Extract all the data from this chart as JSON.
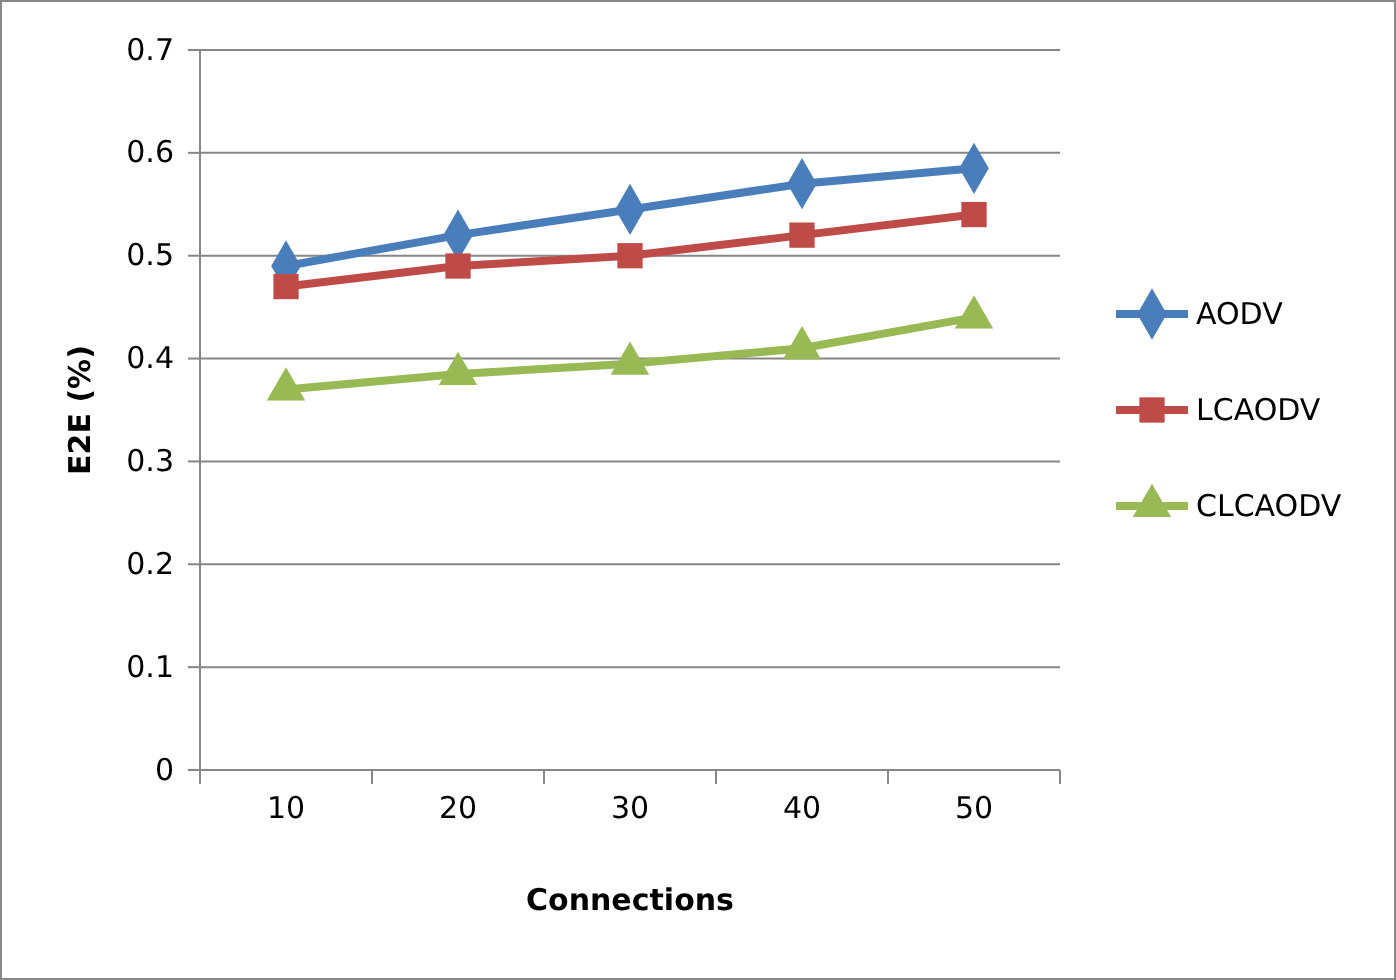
{
  "chart_data": {
    "type": "line",
    "xlabel": "Connections",
    "ylabel": "E2E (%)",
    "categories": [
      "10",
      "20",
      "30",
      "40",
      "50"
    ],
    "series": [
      {
        "name": "AODV",
        "color": "#4a7ebb",
        "values": [
          0.49,
          0.52,
          0.545,
          0.57,
          0.585
        ],
        "marker": "diamond"
      },
      {
        "name": "LCAODV",
        "color": "#be4b48",
        "values": [
          0.47,
          0.49,
          0.5,
          0.52,
          0.54
        ],
        "marker": "square"
      },
      {
        "name": "CLCAODV",
        "color": "#98b954",
        "values": [
          0.37,
          0.385,
          0.395,
          0.41,
          0.44
        ],
        "marker": "triangle"
      }
    ],
    "ylim": [
      0,
      0.7
    ],
    "yticks": [
      0,
      0.1,
      0.2,
      0.3,
      0.4,
      0.5,
      0.6,
      0.7
    ],
    "grid": "y",
    "legend": "right"
  }
}
